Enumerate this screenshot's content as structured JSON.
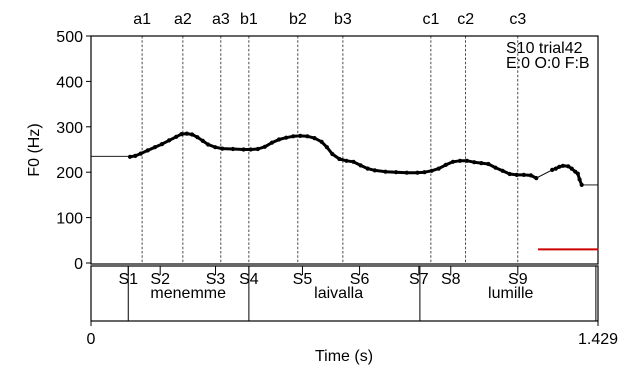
{
  "chart_data": {
    "type": "line",
    "info_lines": [
      "S10 trial42",
      "E:0 O:0 F:B"
    ],
    "xlabel": "Time (s)",
    "ylabel": "F0 (Hz)",
    "x_tick_labels": [
      "0",
      "1.429"
    ],
    "xlim": [
      0,
      1.429
    ],
    "ylim": [
      0,
      500
    ],
    "y_ticks": [
      0,
      100,
      200,
      300,
      400,
      500
    ],
    "grid": false,
    "markers": [
      {
        "label": "a1",
        "t": 0.144
      },
      {
        "label": "a2",
        "t": 0.259
      },
      {
        "label": "a3",
        "t": 0.366
      },
      {
        "label": "b1",
        "t": 0.445
      },
      {
        "label": "b2",
        "t": 0.583
      },
      {
        "label": "b3",
        "t": 0.71
      },
      {
        "label": "c1",
        "t": 0.958
      },
      {
        "label": "c2",
        "t": 1.056
      },
      {
        "label": "c3",
        "t": 1.203
      }
    ],
    "segments": [
      {
        "label": "S1",
        "t": 0.105
      },
      {
        "label": "S2",
        "t": 0.195
      },
      {
        "label": "S3",
        "t": 0.351
      },
      {
        "label": "S4",
        "t": 0.445
      },
      {
        "label": "S5",
        "t": 0.596
      },
      {
        "label": "S6",
        "t": 0.757
      },
      {
        "label": "S7",
        "t": 0.924
      },
      {
        "label": "S8",
        "t": 1.014
      },
      {
        "label": "S9",
        "t": 1.203
      }
    ],
    "words": [
      {
        "label": "menemme",
        "t": 0.274
      },
      {
        "label": "laivalla",
        "t": 0.698
      },
      {
        "label": "lumille",
        "t": 1.183
      }
    ],
    "word_boundaries": [
      0.105,
      0.445,
      0.927,
      1.423
    ],
    "reference_line": {
      "value": 30,
      "t_start": 1.26,
      "t_end": 1.43,
      "color": "#cc0000"
    },
    "pre_level": {
      "value": 235,
      "t_start": 0.0,
      "t_end": 0.105
    },
    "post_level": {
      "value": 172,
      "t_start": 1.383,
      "t_end": 1.429
    },
    "series": [
      {
        "values": [
          [
            0.11,
            234
          ],
          [
            0.125,
            236
          ],
          [
            0.14,
            241
          ],
          [
            0.16,
            248
          ],
          [
            0.18,
            255
          ],
          [
            0.2,
            262
          ],
          [
            0.22,
            270
          ],
          [
            0.24,
            278
          ],
          [
            0.255,
            284
          ],
          [
            0.27,
            285
          ],
          [
            0.285,
            283
          ],
          [
            0.3,
            277
          ],
          [
            0.315,
            269
          ],
          [
            0.33,
            261
          ],
          [
            0.35,
            255
          ],
          [
            0.37,
            252
          ],
          [
            0.4,
            251
          ],
          [
            0.43,
            250
          ],
          [
            0.45,
            250
          ],
          [
            0.47,
            251
          ],
          [
            0.49,
            256
          ],
          [
            0.51,
            265
          ],
          [
            0.53,
            272
          ],
          [
            0.55,
            276
          ],
          [
            0.57,
            279
          ],
          [
            0.59,
            280
          ],
          [
            0.61,
            279
          ],
          [
            0.63,
            275
          ],
          [
            0.65,
            267
          ],
          [
            0.665,
            255
          ],
          [
            0.68,
            240
          ],
          [
            0.7,
            229
          ],
          [
            0.72,
            225
          ],
          [
            0.74,
            223
          ],
          [
            0.76,
            215
          ],
          [
            0.78,
            208
          ],
          [
            0.8,
            204
          ],
          [
            0.83,
            201
          ],
          [
            0.86,
            200
          ],
          [
            0.89,
            199
          ],
          [
            0.92,
            199
          ],
          [
            0.94,
            200
          ],
          [
            0.96,
            203
          ],
          [
            0.98,
            208
          ],
          [
            1.0,
            216
          ],
          [
            1.02,
            223
          ],
          [
            1.04,
            225
          ],
          [
            1.06,
            225
          ],
          [
            1.08,
            222
          ],
          [
            1.1,
            220
          ],
          [
            1.12,
            218
          ],
          [
            1.14,
            210
          ],
          [
            1.16,
            203
          ],
          [
            1.18,
            196
          ],
          [
            1.2,
            194
          ],
          [
            1.22,
            194
          ],
          [
            1.24,
            193
          ],
          [
            1.255,
            187
          ]
        ]
      },
      {
        "values": [
          [
            1.255,
            187
          ],
          [
            1.3,
            205
          ]
        ]
      },
      {
        "values": [
          [
            1.3,
            205
          ],
          [
            1.31,
            208
          ],
          [
            1.32,
            212
          ],
          [
            1.33,
            214
          ],
          [
            1.345,
            213
          ],
          [
            1.355,
            208
          ],
          [
            1.365,
            201
          ],
          [
            1.372,
            197
          ],
          [
            1.377,
            184
          ],
          [
            1.383,
            172
          ]
        ]
      }
    ]
  }
}
